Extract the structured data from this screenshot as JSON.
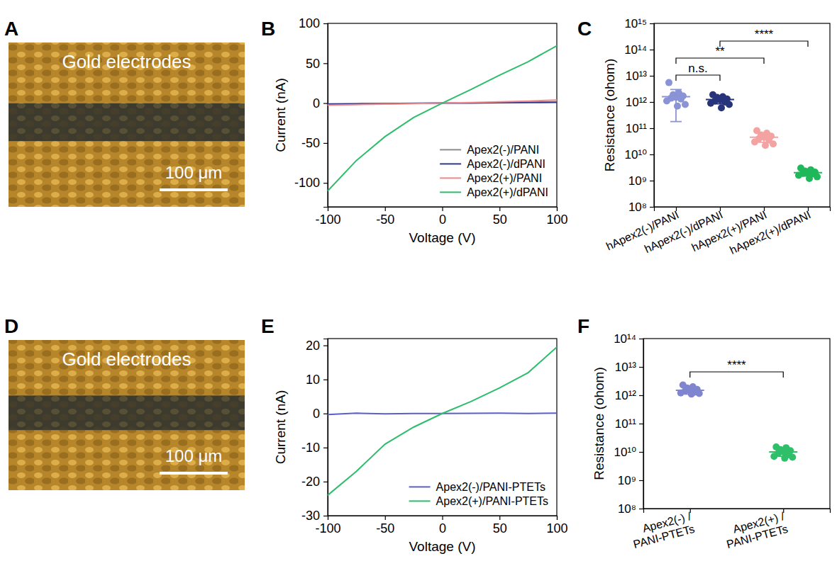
{
  "chart_data": [
    {
      "type": "image",
      "panel": "A",
      "label": "Gold electrodes",
      "scale_bar": "100 μm"
    },
    {
      "type": "line",
      "panel": "B",
      "x_label": "Voltage (V)",
      "y_label": "Current (nA)",
      "x": [
        -100,
        -75,
        -50,
        -25,
        0,
        25,
        50,
        75,
        100
      ],
      "series": [
        {
          "name": "Apex2(-)/PANI",
          "color": "#8c8c8c",
          "values": [
            -1.5,
            -1.1,
            -0.8,
            -0.4,
            0,
            0.4,
            0.8,
            1.2,
            1.6
          ]
        },
        {
          "name": "Apex2(-)/dPANI",
          "color": "#2f3a8f",
          "values": [
            -1.0,
            -0.7,
            -0.5,
            -0.2,
            0,
            0.2,
            0.5,
            0.7,
            1.0
          ]
        },
        {
          "name": "Apex2(+)/PANI",
          "color": "#f08a8a",
          "values": [
            -2.5,
            -1.8,
            -1.2,
            -0.6,
            0,
            0.8,
            1.6,
            2.6,
            3.8
          ]
        },
        {
          "name": "Apex2(+)/dPANI",
          "color": "#2ebd6b",
          "values": [
            -110,
            -72,
            -42,
            -18,
            0,
            17,
            35,
            52,
            72
          ]
        }
      ],
      "xlim": [
        -100,
        100
      ],
      "ylim": [
        -130,
        100
      ],
      "xticks": [
        -100,
        -50,
        0,
        50,
        100
      ],
      "yticks": [
        -100,
        -50,
        0,
        50,
        100
      ],
      "legend": "lower right"
    },
    {
      "type": "scatter",
      "panel": "C",
      "y_label": "Resistance (ohom)",
      "log": "y",
      "categories": [
        "hApex2(-)/PANI",
        "hApex2(-)/dPANI",
        "hApex2(+)/PANI",
        "hApex2(+)/dPANI"
      ],
      "colors": [
        "#8a93d6",
        "#27337a",
        "#f4a3a3",
        "#1fb85a"
      ],
      "values": [
        [
          5500000000000.0,
          2200000000000.0,
          1900000000000.0,
          1700000000000.0,
          1500000000000.0,
          1400000000000.0,
          1300000000000.0,
          1100000000000.0,
          800000000000.0,
          700000000000.0
        ],
        [
          1900000000000.0,
          1600000000000.0,
          1500000000000.0,
          1300000000000.0,
          1200000000000.0,
          1100000000000.0,
          1000000000000.0,
          900000000000.0,
          800000000000.0,
          600000000000.0
        ],
        [
          80000000000.0,
          65000000000.0,
          55000000000.0,
          50000000000.0,
          45000000000.0,
          40000000000.0,
          35000000000.0,
          30000000000.0,
          25000000000.0,
          22000000000.0
        ],
        [
          3000000000.0,
          2600000000.0,
          2300000000.0,
          2100000000.0,
          2000000000.0,
          1900000000.0,
          1800000000.0,
          1600000000.0,
          1400000000.0,
          1200000000.0
        ]
      ],
      "mean": [
        1600000000000.0,
        1250000000000.0,
        45000000000.0,
        2000000000.0
      ],
      "error_low": [
        180000000000.0,
        850000000000.0,
        29000000000.0,
        1500000000.0
      ],
      "error_high": [
        3000000000000.0,
        1650000000000.0,
        62000000000.0,
        2500000000.0
      ],
      "ylim": [
        100000000.0,
        1000000000000000.0
      ],
      "yticks": [
        {
          "value": 100000000.0,
          "label": "10⁸"
        },
        {
          "value": 1000000000.0,
          "label": "10⁹"
        },
        {
          "value": 10000000000.0,
          "label": "10¹⁰"
        },
        {
          "value": 100000000000.0,
          "label": "10¹¹"
        },
        {
          "value": 1000000000000.0,
          "label": "10¹²"
        },
        {
          "value": 10000000000000.0,
          "label": "10¹³"
        },
        {
          "value": 100000000000000.0,
          "label": "10¹⁴"
        },
        {
          "value": 1000000000000000.0,
          "label": "10¹⁵"
        }
      ],
      "comparisons": [
        {
          "between": [
            0,
            1
          ],
          "label": "n.s."
        },
        {
          "between": [
            0,
            2
          ],
          "label": "**"
        },
        {
          "between": [
            1,
            3
          ],
          "label": "****"
        }
      ]
    },
    {
      "type": "image",
      "panel": "D",
      "label": "Gold electrodes",
      "scale_bar": "100 μm"
    },
    {
      "type": "line",
      "panel": "E",
      "x_label": "Voltage (V)",
      "y_label": "Current (nA)",
      "x": [
        -100,
        -75,
        -50,
        -25,
        0,
        25,
        50,
        75,
        100
      ],
      "series": [
        {
          "name": "Apex2(-)/PANI-PTETs",
          "color": "#5b5fc7",
          "values": [
            -0.3,
            0.1,
            -0.1,
            0,
            0,
            0.05,
            0.1,
            0,
            0.1
          ]
        },
        {
          "name": "Apex2(+)/PANI-PTETs",
          "color": "#2ebd6b",
          "values": [
            -24,
            -17,
            -9,
            -4,
            0,
            3.5,
            7.5,
            12,
            19.5
          ]
        }
      ],
      "xlim": [
        -100,
        100
      ],
      "ylim": [
        -30,
        22
      ],
      "xticks": [
        -100,
        -50,
        0,
        50,
        100
      ],
      "yticks": [
        -30,
        -20,
        -10,
        0,
        10,
        20
      ],
      "legend": "lower right"
    },
    {
      "type": "scatter",
      "panel": "F",
      "y_label": "Resistance (ohom)",
      "log": "y",
      "categories": [
        "Apex2(-) / PANI-PTETs",
        "Apex2(+) / PANI-PTETs"
      ],
      "colors": [
        "#7f86cf",
        "#2fbf6b"
      ],
      "values": [
        [
          2300000000000.0,
          2000000000000.0,
          1800000000000.0,
          1600000000000.0,
          1500000000000.0,
          1400000000000.0,
          1300000000000.0,
          1200000000000.0,
          1150000000000.0,
          1100000000000.0
        ],
        [
          15000000000.0,
          14000000000.0,
          12000000000.0,
          11000000000.0,
          10000000000.0,
          9000000000.0,
          8000000000.0,
          7000000000.0,
          6500000000.0,
          6000000000.0
        ]
      ],
      "mean": [
        1500000000000.0,
        10000000000.0
      ],
      "error_low": [
        1100000000000.0,
        7000000000.0
      ],
      "error_high": [
        1900000000000.0,
        13500000000.0
      ],
      "ylim": [
        100000000.0,
        100000000000000.0
      ],
      "yticks": [
        {
          "value": 100000000.0,
          "label": "10⁸"
        },
        {
          "value": 1000000000.0,
          "label": "10⁹"
        },
        {
          "value": 10000000000.0,
          "label": "10¹⁰"
        },
        {
          "value": 100000000000.0,
          "label": "10¹¹"
        },
        {
          "value": 1000000000000.0,
          "label": "10¹²"
        },
        {
          "value": 10000000000000.0,
          "label": "10¹³"
        },
        {
          "value": 100000000000000.0,
          "label": "10¹⁴"
        }
      ],
      "comparisons": [
        {
          "between": [
            0,
            1
          ],
          "label": "****"
        }
      ]
    }
  ]
}
